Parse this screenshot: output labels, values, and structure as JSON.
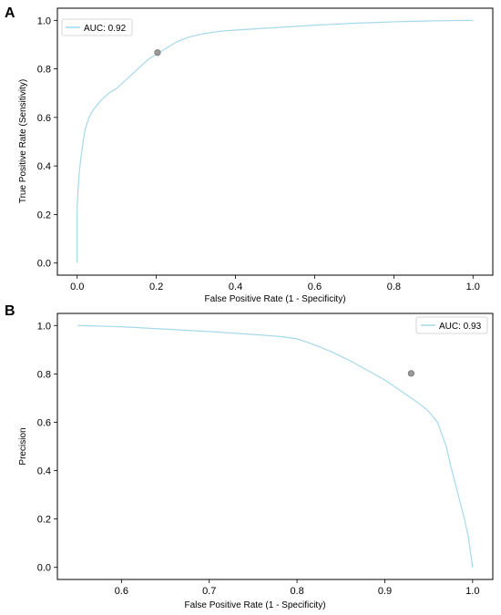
{
  "chart_data": [
    {
      "panel": "A",
      "type": "line",
      "xlabel": "False Positive Rate (1 - Specificity)",
      "ylabel": "True Positive Rate (Sensitivity)",
      "xlim": [
        -0.05,
        1.05
      ],
      "ylim": [
        -0.05,
        1.05
      ],
      "xticks": [
        "0.0",
        "0.2",
        "0.4",
        "0.6",
        "0.8",
        "1.0"
      ],
      "yticks": [
        "0.0",
        "0.2",
        "0.4",
        "0.6",
        "0.8",
        "1.0"
      ],
      "legend": {
        "position": "top-left"
      },
      "series": [
        {
          "name": "AUC: 0.92",
          "color": "#a6d8ea",
          "x": [
            0.0,
            0.0,
            0.002,
            0.005,
            0.01,
            0.015,
            0.02,
            0.03,
            0.04,
            0.06,
            0.08,
            0.1,
            0.12,
            0.14,
            0.16,
            0.18,
            0.2,
            0.22,
            0.25,
            0.28,
            0.32,
            0.36,
            0.4,
            0.45,
            0.5,
            0.55,
            0.6,
            0.65,
            0.7,
            0.75,
            0.8,
            0.85,
            0.9,
            0.95,
            1.0
          ],
          "y": [
            0.0,
            0.23,
            0.3,
            0.37,
            0.44,
            0.5,
            0.55,
            0.6,
            0.63,
            0.67,
            0.7,
            0.72,
            0.75,
            0.78,
            0.81,
            0.84,
            0.86,
            0.88,
            0.91,
            0.93,
            0.945,
            0.955,
            0.96,
            0.965,
            0.97,
            0.975,
            0.98,
            0.984,
            0.988,
            0.991,
            0.994,
            0.996,
            0.998,
            0.999,
            1.0
          ]
        }
      ],
      "point": {
        "x": 0.203,
        "y": 0.867,
        "color": "#9a9a9a"
      }
    },
    {
      "panel": "B",
      "type": "line",
      "xlabel": "False Positive Rate (1 - Specificity)",
      "ylabel": "Precision",
      "xlim": [
        0.527,
        1.023
      ],
      "ylim": [
        -0.05,
        1.05
      ],
      "xticks": [
        "0.6",
        "0.7",
        "0.8",
        "0.9",
        "1.0"
      ],
      "yticks": [
        "0.0",
        "0.2",
        "0.4",
        "0.6",
        "0.8",
        "1.0"
      ],
      "legend": {
        "position": "top-right"
      },
      "series": [
        {
          "name": "AUC: 0.93",
          "color": "#a6d8ea",
          "x": [
            0.55,
            0.6,
            0.65,
            0.7,
            0.75,
            0.78,
            0.8,
            0.82,
            0.84,
            0.86,
            0.88,
            0.9,
            0.91,
            0.92,
            0.93,
            0.94,
            0.95,
            0.96,
            0.965,
            0.97,
            0.975,
            0.98,
            0.985,
            0.99,
            0.995,
            1.0
          ],
          "y": [
            1.0,
            0.995,
            0.985,
            0.975,
            0.963,
            0.955,
            0.945,
            0.92,
            0.89,
            0.855,
            0.815,
            0.775,
            0.75,
            0.725,
            0.7,
            0.675,
            0.645,
            0.6,
            0.55,
            0.5,
            0.42,
            0.35,
            0.28,
            0.21,
            0.13,
            0.0
          ]
        }
      ],
      "point": {
        "x": 0.93,
        "y": 0.802,
        "color": "#9a9a9a"
      }
    }
  ]
}
